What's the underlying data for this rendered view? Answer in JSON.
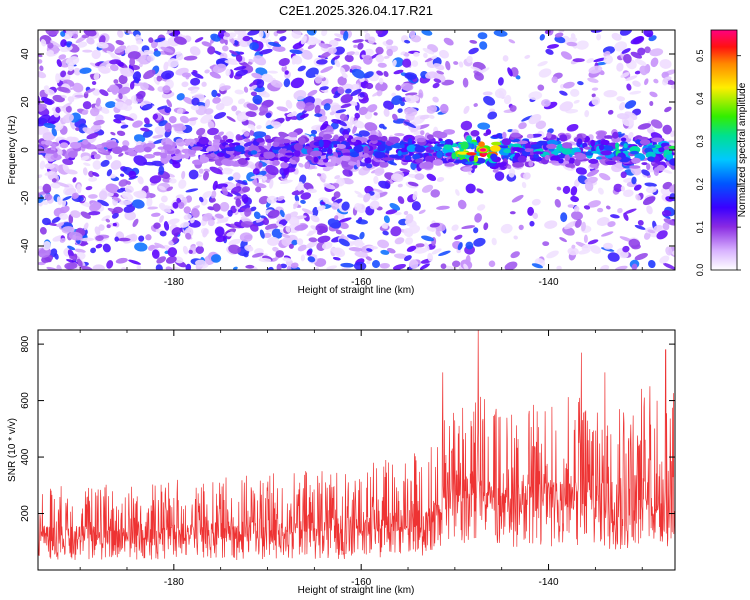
{
  "figure_title": "C2E1.2025.326.04.17.R21",
  "colors": {
    "snr_line": "#ee3333",
    "axis": "#000000",
    "background": "#ffffff"
  },
  "chart_data": [
    {
      "type": "heatmap",
      "title": "C2E1.2025.326.04.17.R21",
      "xlabel": "Height of straight line (km)",
      "ylabel": "Frequency (Hz)",
      "xlim": [
        -194.5,
        -126.5
      ],
      "ylim": [
        -50,
        50
      ],
      "xticks": [
        -180,
        -160,
        -140
      ],
      "xtick_labels": [
        "-180",
        "-160",
        "-140"
      ],
      "yticks": [
        -40,
        -20,
        0,
        20,
        40
      ],
      "ytick_labels": [
        "-40",
        "-20",
        "0",
        "20",
        "40"
      ],
      "colorbar": {
        "label": "Normalized spectral amplitude",
        "range": [
          0,
          0.56
        ],
        "ticks": [
          0,
          0.1,
          0.2,
          0.3,
          0.4,
          0.5
        ],
        "tick_labels": [
          "0.0",
          "0.1",
          "0.2",
          "0.3",
          "0.4",
          "0.5"
        ],
        "colormap": "rainbow (white-violet-blue-cyan-green-yellow-red-magenta)"
      },
      "signal_band": {
        "center_frequency": 0,
        "half_width": 6,
        "start_height": -178,
        "peak_height": -147,
        "peak_amplitude": 0.56
      }
    },
    {
      "type": "line",
      "xlabel": "Height of straight line (km)",
      "ylabel": "SNR (10 * v/v)",
      "xlim": [
        -194.5,
        -126.5
      ],
      "ylim": [
        0,
        850
      ],
      "xticks": [
        -180,
        -160,
        -140
      ],
      "xtick_labels": [
        "-180",
        "-160",
        "-140"
      ],
      "yticks": [
        200,
        400,
        600,
        800
      ],
      "ytick_labels": [
        "200",
        "400",
        "600",
        "800"
      ],
      "series": [
        {
          "name": "SNR",
          "color": "#ee3333",
          "envelope_x": [
            -194.5,
            -180,
            -170,
            -160,
            -155,
            -151.5,
            -151,
            -148,
            -145,
            -140,
            -135,
            -130,
            -127
          ],
          "envelope_max": [
            300,
            320,
            340,
            380,
            420,
            480,
            600,
            680,
            560,
            600,
            640,
            660,
            650
          ],
          "envelope_min": [
            35,
            35,
            35,
            40,
            45,
            55,
            80,
            90,
            80,
            80,
            70,
            60,
            60
          ],
          "peaks": [
            {
              "x": -147.5,
              "y": 850
            },
            {
              "x": -151.3,
              "y": 700
            },
            {
              "x": -136.5,
              "y": 770
            },
            {
              "x": -134,
              "y": 700
            },
            {
              "x": -127.5,
              "y": 780
            }
          ]
        }
      ]
    }
  ]
}
